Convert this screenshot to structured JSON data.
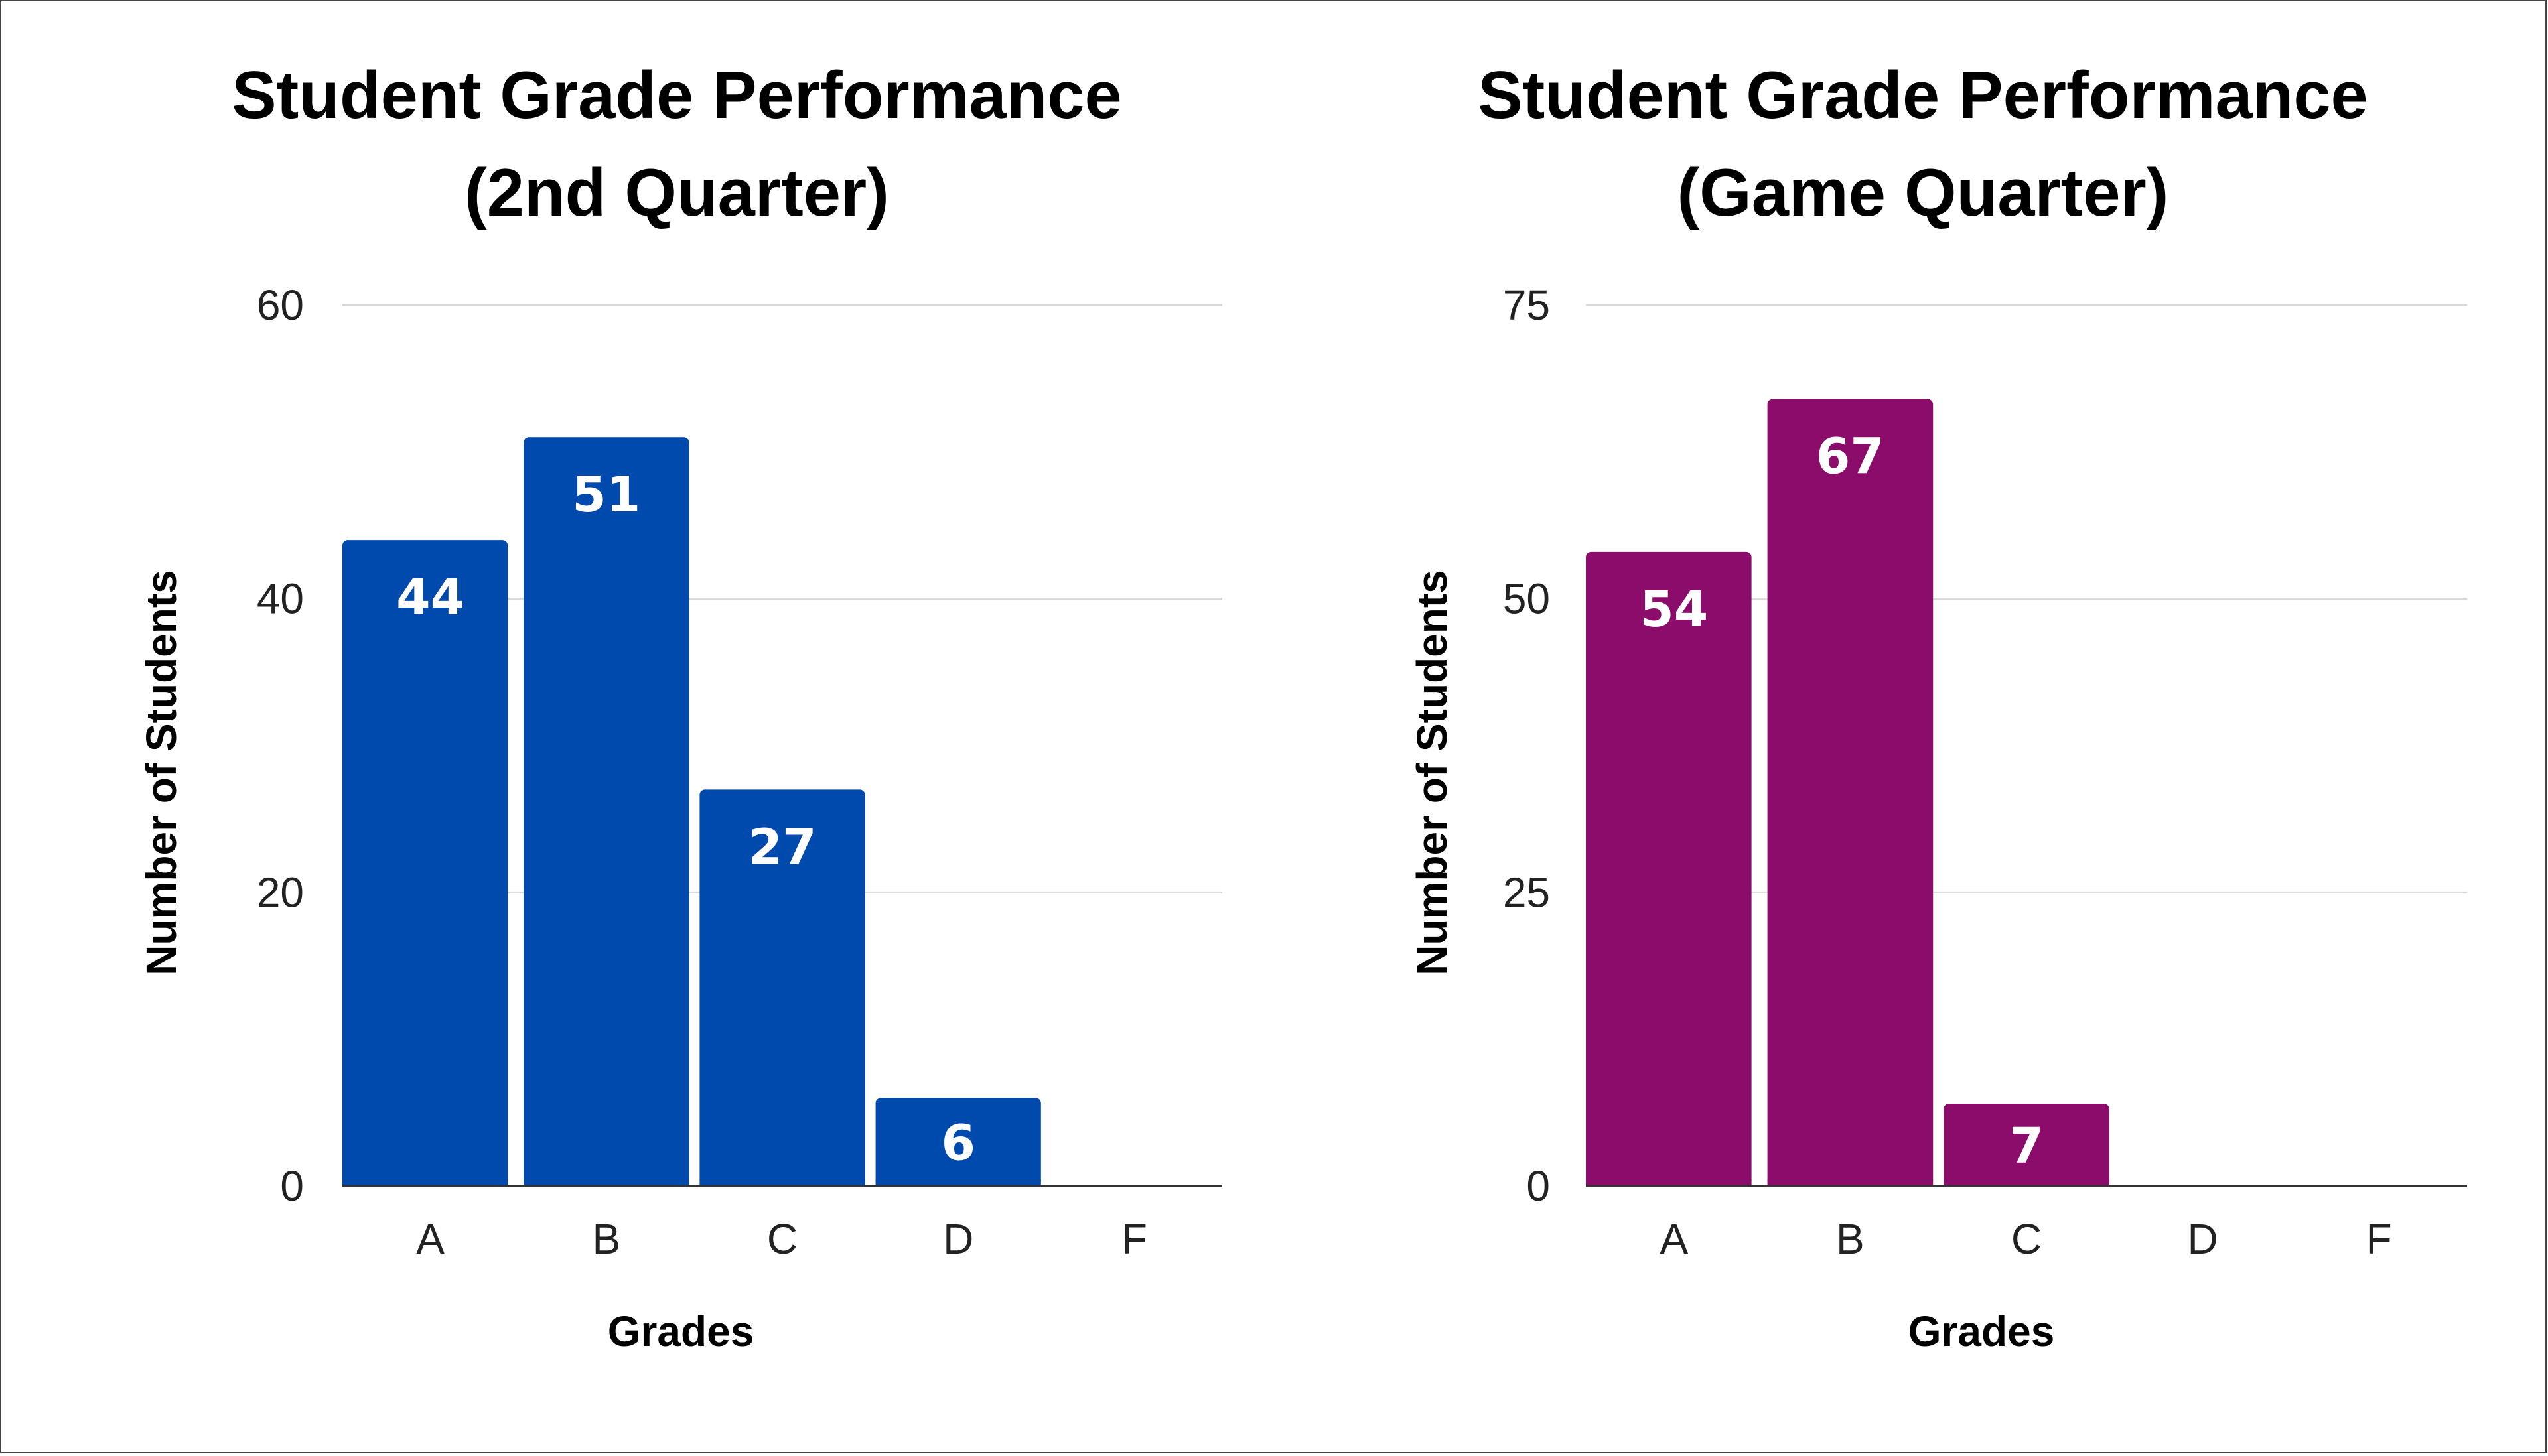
{
  "chart_data": [
    {
      "type": "bar",
      "title_lines": [
        "Student Grade Performance",
        "(2nd Quarter)"
      ],
      "xlabel": "Grades",
      "ylabel": "Number of Students",
      "categories": [
        "A",
        "B",
        "C",
        "D",
        "F"
      ],
      "values": [
        44,
        51,
        27,
        6,
        0
      ],
      "data_labels": [
        "44",
        "51",
        "27",
        "6",
        ""
      ],
      "ylim": [
        0,
        60
      ],
      "yticks": [
        "0",
        "20",
        "40",
        "60"
      ],
      "color": "#004aad",
      "grid": true
    },
    {
      "type": "bar",
      "title_lines": [
        "Student Grade Performance",
        "(Game Quarter)"
      ],
      "xlabel": "Grades",
      "ylabel": "Number of Students",
      "categories": [
        "A",
        "B",
        "C",
        "D",
        "F"
      ],
      "values": [
        54,
        67,
        7,
        0,
        0
      ],
      "data_labels": [
        "54",
        "67",
        "7",
        "",
        ""
      ],
      "ylim": [
        0,
        75
      ],
      "yticks": [
        "0",
        "25",
        "50",
        "75"
      ],
      "color": "#8c0c6c",
      "grid": true
    }
  ]
}
